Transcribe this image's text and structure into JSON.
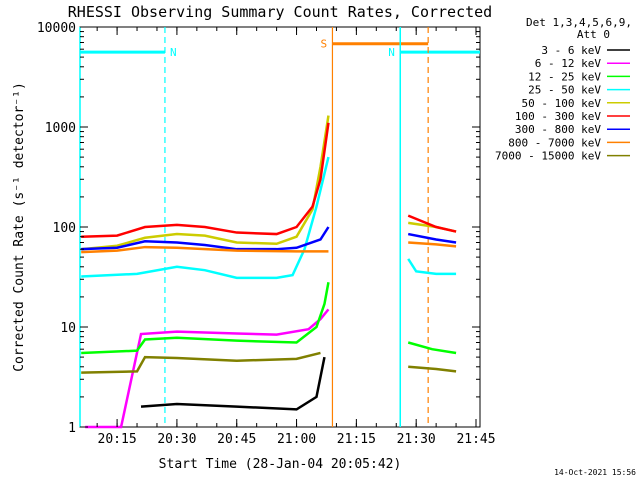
{
  "chart_data": {
    "type": "line",
    "title": "RHESSI Observing Summary Count Rates, Corrected",
    "xlabel": "Start Time (28-Jan-04 20:05:42)",
    "ylabel": "Corrected Count Rate (s⁻¹ detector⁻¹)",
    "y_scale": "log",
    "ylim": [
      1,
      10000
    ],
    "xlim": [
      "20:05:42",
      "21:46:00"
    ],
    "x_ticks": [
      "20:15",
      "20:30",
      "20:45",
      "21:00",
      "21:15",
      "21:30",
      "21:45"
    ],
    "y_ticks": [
      "1",
      "10",
      "100",
      "1000",
      "10000"
    ],
    "legend": {
      "header_line1": "Det 1,3,4,5,6,9,",
      "header_line2": "Att 0",
      "placement": "outside-right"
    },
    "series": [
      {
        "name": "3 - 6 keV",
        "color": "#000000",
        "points": [
          [
            "20:21",
            1.6
          ],
          [
            "20:30",
            1.7
          ],
          [
            "20:45",
            1.6
          ],
          [
            "21:00",
            1.5
          ],
          [
            "21:05",
            2.0
          ],
          [
            "21:07",
            5.0
          ]
        ]
      },
      {
        "name": "6 - 12 keV",
        "color": "#ff00ff",
        "points": [
          [
            "20:07",
            1.0
          ],
          [
            "20:16",
            1.0
          ],
          [
            "20:21",
            8.5
          ],
          [
            "20:30",
            9.0
          ],
          [
            "20:45",
            8.6
          ],
          [
            "20:55",
            8.4
          ],
          [
            "21:03",
            9.5
          ],
          [
            "21:06",
            12
          ],
          [
            "21:08",
            15
          ]
        ]
      },
      {
        "name": "12 - 25 keV",
        "color": "#00ff00",
        "points": [
          [
            "20:06",
            5.5
          ],
          [
            "20:20",
            5.8
          ],
          [
            "20:22",
            7.5
          ],
          [
            "20:30",
            7.8
          ],
          [
            "20:45",
            7.3
          ],
          [
            "21:00",
            7.0
          ],
          [
            "21:05",
            10
          ],
          [
            "21:07",
            17
          ],
          [
            "21:08",
            28
          ],
          [
            "21:28",
            7.0
          ],
          [
            "21:34",
            6.0
          ],
          [
            "21:40",
            5.5
          ]
        ]
      },
      {
        "name": "25 - 50 keV",
        "color": "#00ffff",
        "points": [
          [
            "20:06",
            32
          ],
          [
            "20:20",
            34
          ],
          [
            "20:30",
            40
          ],
          [
            "20:37",
            37
          ],
          [
            "20:45",
            31
          ],
          [
            "20:55",
            31
          ],
          [
            "20:59",
            33
          ],
          [
            "21:02",
            60
          ],
          [
            "21:05",
            160
          ],
          [
            "21:08",
            500
          ],
          [
            "21:28",
            48
          ],
          [
            "21:30",
            36
          ],
          [
            "21:35",
            34
          ],
          [
            "21:40",
            34
          ]
        ]
      },
      {
        "name": "50 - 100 keV",
        "color": "#cccc00",
        "points": [
          [
            "20:06",
            60
          ],
          [
            "20:15",
            65
          ],
          [
            "20:22",
            78
          ],
          [
            "20:30",
            85
          ],
          [
            "20:37",
            82
          ],
          [
            "20:45",
            70
          ],
          [
            "20:55",
            68
          ],
          [
            "21:00",
            80
          ],
          [
            "21:04",
            150
          ],
          [
            "21:06",
            400
          ],
          [
            "21:08",
            1300
          ],
          [
            "21:28",
            110
          ],
          [
            "21:35",
            100
          ],
          [
            "21:40",
            90
          ]
        ]
      },
      {
        "name": "100 - 300 keV",
        "color": "#ff0000",
        "points": [
          [
            "20:06",
            80
          ],
          [
            "20:15",
            82
          ],
          [
            "20:22",
            100
          ],
          [
            "20:30",
            105
          ],
          [
            "20:37",
            100
          ],
          [
            "20:45",
            88
          ],
          [
            "20:55",
            85
          ],
          [
            "21:00",
            100
          ],
          [
            "21:04",
            160
          ],
          [
            "21:06",
            300
          ],
          [
            "21:08",
            1100
          ],
          [
            "21:28",
            130
          ],
          [
            "21:35",
            100
          ],
          [
            "21:40",
            90
          ]
        ]
      },
      {
        "name": "300 - 800 keV",
        "color": "#0000ff",
        "points": [
          [
            "20:06",
            60
          ],
          [
            "20:15",
            62
          ],
          [
            "20:22",
            72
          ],
          [
            "20:30",
            70
          ],
          [
            "20:37",
            66
          ],
          [
            "20:45",
            60
          ],
          [
            "20:55",
            60
          ],
          [
            "21:00",
            62
          ],
          [
            "21:06",
            75
          ],
          [
            "21:08",
            100
          ],
          [
            "21:28",
            85
          ],
          [
            "21:35",
            75
          ],
          [
            "21:40",
            70
          ]
        ]
      },
      {
        "name": "800 - 7000 keV",
        "color": "#ff8000",
        "points": [
          [
            "20:06",
            56
          ],
          [
            "20:15",
            58
          ],
          [
            "20:22",
            63
          ],
          [
            "20:30",
            62
          ],
          [
            "20:45",
            58
          ],
          [
            "21:00",
            57
          ],
          [
            "21:08",
            57
          ],
          [
            "21:28",
            70
          ],
          [
            "21:35",
            67
          ],
          [
            "21:40",
            64
          ]
        ]
      },
      {
        "name": "7000 - 15000 keV",
        "color": "#808000",
        "points": [
          [
            "20:06",
            3.5
          ],
          [
            "20:20",
            3.6
          ],
          [
            "20:22",
            5.0
          ],
          [
            "20:30",
            4.9
          ],
          [
            "20:45",
            4.6
          ],
          [
            "21:00",
            4.8
          ],
          [
            "21:06",
            5.5
          ],
          [
            "21:28",
            4.0
          ],
          [
            "21:35",
            3.8
          ],
          [
            "21:40",
            3.6
          ]
        ]
      }
    ],
    "annotations": [
      {
        "text": "N",
        "color": "#00ffff",
        "x_start": "20:05:42",
        "x_end": "20:27",
        "level": 5600
      },
      {
        "text": "N",
        "color": "#00ffff",
        "x_start": "21:26",
        "x_end": "21:46",
        "level": 5600
      },
      {
        "text": "S",
        "color": "#ff8000",
        "x_start": "21:09",
        "x_end": "21:33",
        "level": 6800
      },
      {
        "text": "",
        "color": "#00ffff",
        "x_start": "20:05:42",
        "x_end": "20:05:42",
        "level": 1
      },
      {
        "text": "",
        "color": "#00ffff",
        "x_start": "21:26",
        "x_end": "21:26",
        "level": 1
      }
    ],
    "grid": false,
    "footer_date": "14-Oct-2021 15:56"
  }
}
